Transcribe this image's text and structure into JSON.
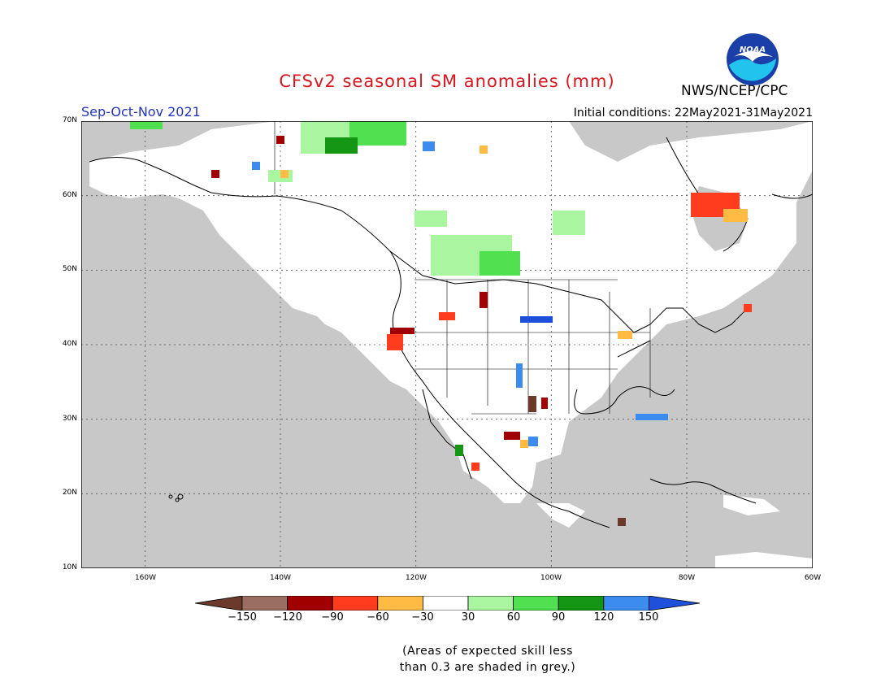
{
  "title": "CFSv2 seasonal SM anomalies (mm)",
  "organization": "NWS/NCEP/CPC",
  "logo_text": "NOAA",
  "season": "Sep-Oct-Nov 2021",
  "initial_conditions": "Initial conditions: 22May2021-31May2021",
  "lat_labels": [
    "70N",
    "60N",
    "50N",
    "40N",
    "30N",
    "20N",
    "10N"
  ],
  "lon_labels": [
    "160W",
    "140W",
    "120W",
    "100W",
    "80W",
    "60W"
  ],
  "colorbar": {
    "tick_labels": [
      "-150",
      "-120",
      "-90",
      "-60",
      "-30",
      "30",
      "60",
      "90",
      "120",
      "150"
    ],
    "colors": [
      "#6b3a2a",
      "#9a6e60",
      "#a00000",
      "#ff3c1e",
      "#ffbb44",
      "#ffffff",
      "#aaf5a0",
      "#50e050",
      "#149614",
      "#3c8cf0",
      "#1e50dc"
    ]
  },
  "note_line1": "(Areas of expected skill less",
  "note_line2": "than 0.3 are shaded in grey.)",
  "colors": {
    "no_skill_grey": "#c8c8c8",
    "title_red": "#e0141c",
    "season_blue": "#2233cc"
  }
}
